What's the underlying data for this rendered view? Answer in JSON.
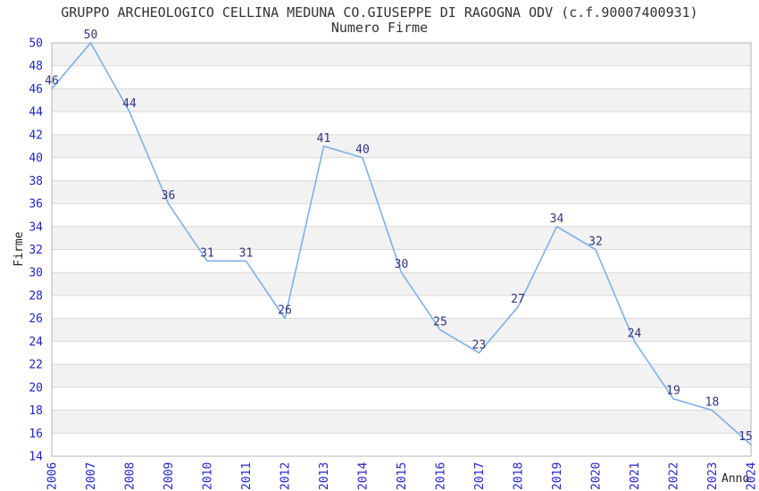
{
  "header": {
    "title": "GRUPPO ARCHEOLOGICO CELLINA MEDUNA CO.GIUSEPPE DI RAGOGNA ODV (c.f.90007400931)",
    "subtitle": "Numero Firme"
  },
  "chart_data": {
    "type": "line",
    "title": "GRUPPO ARCHEOLOGICO CELLINA MEDUNA CO.GIUSEPPE DI RAGOGNA ODV (c.f.90007400931)",
    "subtitle": "Numero Firme",
    "xlabel": "Anno",
    "ylabel": "Firme",
    "x": [
      "2006",
      "2007",
      "2008",
      "2009",
      "2010",
      "2011",
      "2012",
      "2013",
      "2014",
      "2015",
      "2016",
      "2017",
      "2018",
      "2019",
      "2020",
      "2021",
      "2022",
      "2023",
      "2024"
    ],
    "series": [
      {
        "name": "Numero Firme",
        "values": [
          46,
          50,
          44,
          36,
          31,
          31,
          26,
          41,
          40,
          30,
          25,
          23,
          27,
          34,
          32,
          24,
          19,
          18,
          15
        ]
      }
    ],
    "ylim": [
      14,
      50
    ],
    "ytick_step": 2,
    "grid": true,
    "legend_position": "none",
    "point_labels": true,
    "colors": {
      "line": "#7cb0e8",
      "tick_label": "#2222cc",
      "point_label": "#333380",
      "band_gray": "#f2f2f2",
      "band_white": "#ffffff",
      "gridline": "#d9d9d9",
      "plot_border": "#b3b3b3",
      "text": "#333333"
    }
  }
}
